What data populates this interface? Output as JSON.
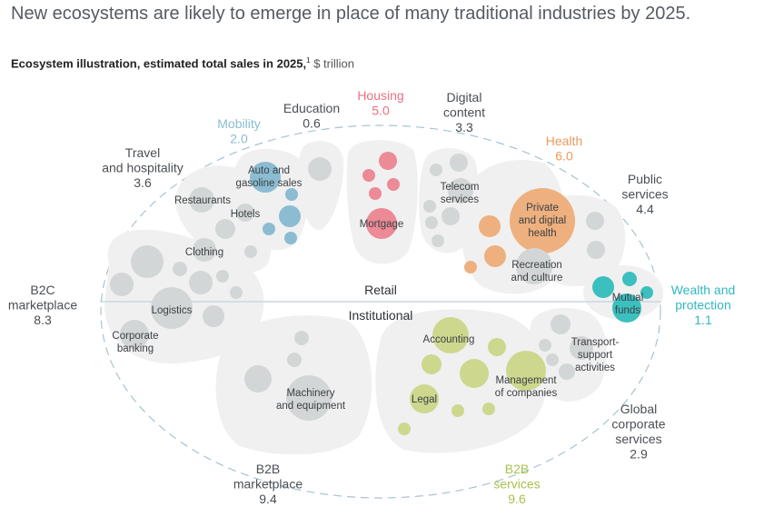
{
  "header": {
    "title": "New ecosystems are likely to emerge in place of many traditional industries by 2025.",
    "subtitle_bold": "Ecosystem illustration, estimated total sales in 2025,",
    "subtitle_footnote": "1",
    "subtitle_unit": " $ trillion"
  },
  "colors": {
    "gray_bubble": "#d3d6d6",
    "blob": "#f0f0f0",
    "mobility": "#8bbcd1",
    "housing": "#ec8a96",
    "health": "#eeb07e",
    "wealth": "#3cbfbf",
    "b2b_services": "#cdd88e",
    "text_dark": "#4a4f54",
    "divider": "#c9d8df",
    "dashed": "#a7c3cf"
  },
  "divider": {
    "top_label": "Retail",
    "bottom_label": "Institutional"
  },
  "ecosystems": [
    {
      "id": "travel",
      "lines": [
        "Travel",
        "and hospitality"
      ],
      "value": "3.6",
      "color": "#4a4f54"
    },
    {
      "id": "mobility",
      "lines": [
        "Mobility"
      ],
      "value": "2.0",
      "color": "#8bbcd1"
    },
    {
      "id": "education",
      "lines": [
        "Education"
      ],
      "value": "0.6",
      "color": "#4a4f54"
    },
    {
      "id": "housing",
      "lines": [
        "Housing"
      ],
      "value": "5.0",
      "color": "#ec7080"
    },
    {
      "id": "digital-content",
      "lines": [
        "Digital",
        "content"
      ],
      "value": "3.3",
      "color": "#4a4f54"
    },
    {
      "id": "health",
      "lines": [
        "Health"
      ],
      "value": "6.0",
      "color": "#ea9a5c"
    },
    {
      "id": "public-services",
      "lines": [
        "Public",
        "services"
      ],
      "value": "4.4",
      "color": "#4a4f54"
    },
    {
      "id": "wealth",
      "lines": [
        "Wealth and",
        "protection"
      ],
      "value": "1.1",
      "color": "#33b8c0"
    },
    {
      "id": "global-corporate",
      "lines": [
        "Global",
        "corporate",
        "services"
      ],
      "value": "2.9",
      "color": "#4a4f54"
    },
    {
      "id": "b2b-services",
      "lines": [
        "B2B",
        "services"
      ],
      "value": "9.6",
      "color": "#a7c24d"
    },
    {
      "id": "b2b-marketplace",
      "lines": [
        "B2B",
        "marketplace"
      ],
      "value": "9.4",
      "color": "#4a4f54"
    },
    {
      "id": "b2c-marketplace",
      "lines": [
        "B2C",
        "marketplace"
      ],
      "value": "8.3",
      "color": "#4a4f54"
    }
  ],
  "industries": [
    {
      "id": "auto",
      "lines": [
        "Auto and",
        "gasoline sales"
      ]
    },
    {
      "id": "restaurants",
      "lines": [
        "Restaurants"
      ]
    },
    {
      "id": "hotels",
      "lines": [
        "Hotels"
      ]
    },
    {
      "id": "clothing",
      "lines": [
        "Clothing"
      ]
    },
    {
      "id": "logistics",
      "lines": [
        "Logistics"
      ]
    },
    {
      "id": "corporate-banking",
      "lines": [
        "Corporate",
        "banking"
      ]
    },
    {
      "id": "mortgage",
      "lines": [
        "Mortgage"
      ]
    },
    {
      "id": "telecom",
      "lines": [
        "Telecom",
        "services"
      ]
    },
    {
      "id": "private-health",
      "lines": [
        "Private",
        "and digital",
        "health"
      ]
    },
    {
      "id": "recreation",
      "lines": [
        "Recreation",
        "and culture"
      ]
    },
    {
      "id": "mutual-funds",
      "lines": [
        "Mutual",
        "funds"
      ]
    },
    {
      "id": "transport-support",
      "lines": [
        "Transport-",
        "support",
        "activities"
      ]
    },
    {
      "id": "accounting",
      "lines": [
        "Accounting"
      ]
    },
    {
      "id": "management",
      "lines": [
        "Management",
        "of companies"
      ]
    },
    {
      "id": "legal",
      "lines": [
        "Legal"
      ]
    },
    {
      "id": "machinery",
      "lines": [
        "Machinery",
        "and equipment"
      ]
    }
  ]
}
